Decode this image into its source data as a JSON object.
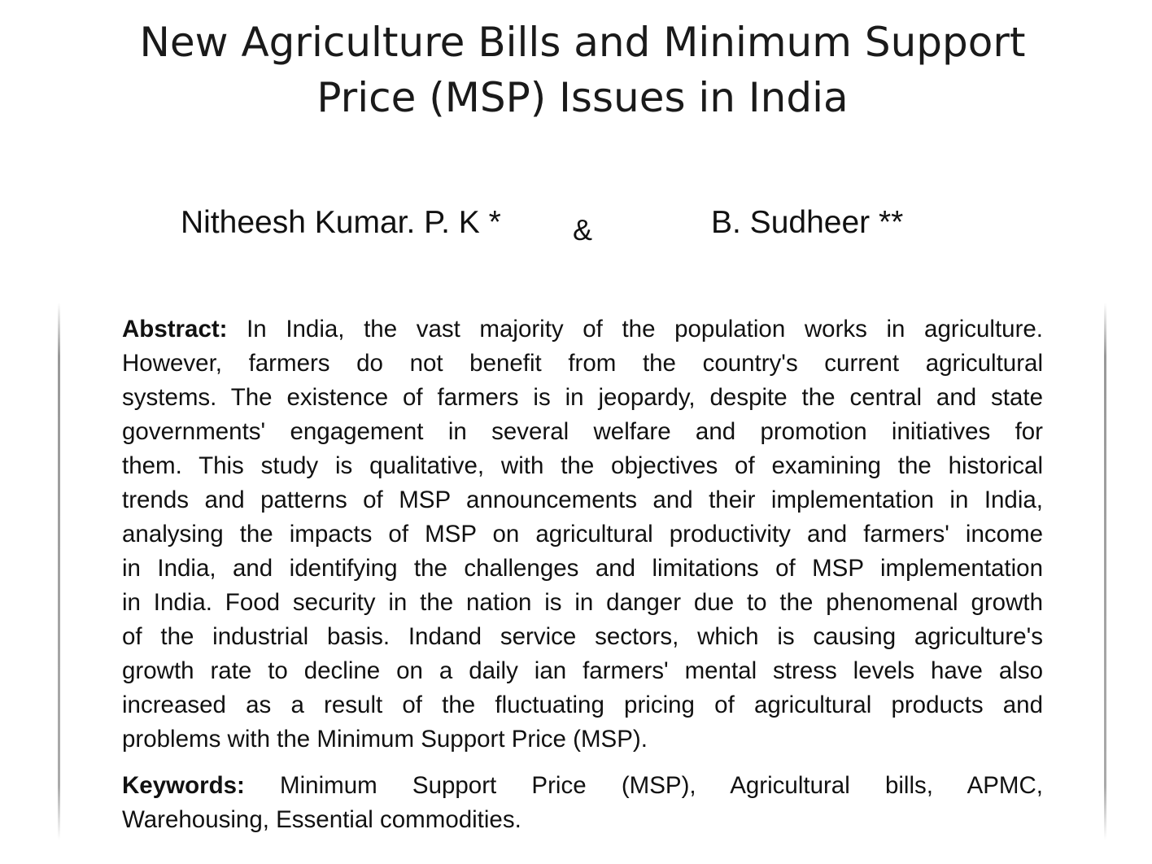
{
  "title": {
    "line1": "New Agriculture Bills and Minimum Support",
    "line2": "Price (MSP) Issues in India"
  },
  "authors": [
    {
      "name": "Nitheesh Kumar. P. K *"
    },
    {
      "name": "B. Sudheer **"
    }
  ],
  "separator": "&",
  "abstract": {
    "label": "Abstract:",
    "lines": [
      "In India, the vast majority of the population works in agriculture.",
      "However, farmers do not benefit from the country's current agricultural",
      "systems. The existence of farmers is in jeopardy, despite the central and state",
      "governments' engagement in several welfare and promotion initiatives for",
      "them. This study is qualitative, with the objectives of examining the historical",
      "trends and patterns of MSP announcements and their implementation in India,",
      "analysing the impacts of MSP on agricultural productivity and farmers' income",
      "in India, and identifying the challenges and limitations of MSP implementation",
      "in India. Food security in the nation is in danger due to the phenomenal growth",
      "of the industrial basis. Indand service sectors, which is causing agriculture's",
      "growth rate to decline on a daily ian farmers' mental stress levels have also",
      "increased as a result of the fluctuating pricing of agricultural products and",
      "problems with the Minimum Support Price (MSP)."
    ]
  },
  "keywords": {
    "label": "Keywords:",
    "lines": [
      "Minimum Support Price (MSP), Agricultural bills, APMC,",
      "Warehousing, Essential commodities."
    ]
  }
}
